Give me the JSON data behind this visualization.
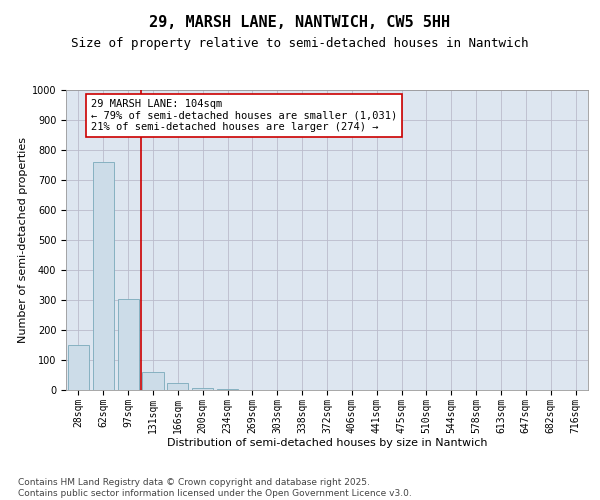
{
  "title": "29, MARSH LANE, NANTWICH, CW5 5HH",
  "subtitle": "Size of property relative to semi-detached houses in Nantwich",
  "xlabel": "Distribution of semi-detached houses by size in Nantwich",
  "ylabel": "Number of semi-detached properties",
  "categories": [
    "28sqm",
    "62sqm",
    "97sqm",
    "131sqm",
    "166sqm",
    "200sqm",
    "234sqm",
    "269sqm",
    "303sqm",
    "338sqm",
    "372sqm",
    "406sqm",
    "441sqm",
    "475sqm",
    "510sqm",
    "544sqm",
    "578sqm",
    "613sqm",
    "647sqm",
    "682sqm",
    "716sqm"
  ],
  "values": [
    150,
    760,
    305,
    60,
    25,
    8,
    2,
    0,
    0,
    0,
    0,
    0,
    0,
    0,
    0,
    0,
    0,
    0,
    0,
    0,
    0
  ],
  "bar_color": "#ccdce8",
  "bar_edge_color": "#7aaabb",
  "grid_color": "#bbbbcc",
  "background_color": "#dde6f0",
  "vline_color": "#cc0000",
  "vline_x_index": 2.5,
  "annotation_text": "29 MARSH LANE: 104sqm\n← 79% of semi-detached houses are smaller (1,031)\n21% of semi-detached houses are larger (274) →",
  "annotation_box_color": "#ffffff",
  "annotation_box_edge": "#cc0000",
  "ylim": [
    0,
    1000
  ],
  "yticks": [
    0,
    100,
    200,
    300,
    400,
    500,
    600,
    700,
    800,
    900,
    1000
  ],
  "footer_line1": "Contains HM Land Registry data © Crown copyright and database right 2025.",
  "footer_line2": "Contains public sector information licensed under the Open Government Licence v3.0.",
  "title_fontsize": 11,
  "subtitle_fontsize": 9,
  "axis_label_fontsize": 8,
  "tick_fontsize": 7,
  "annotation_fontsize": 7.5,
  "footer_fontsize": 6.5
}
